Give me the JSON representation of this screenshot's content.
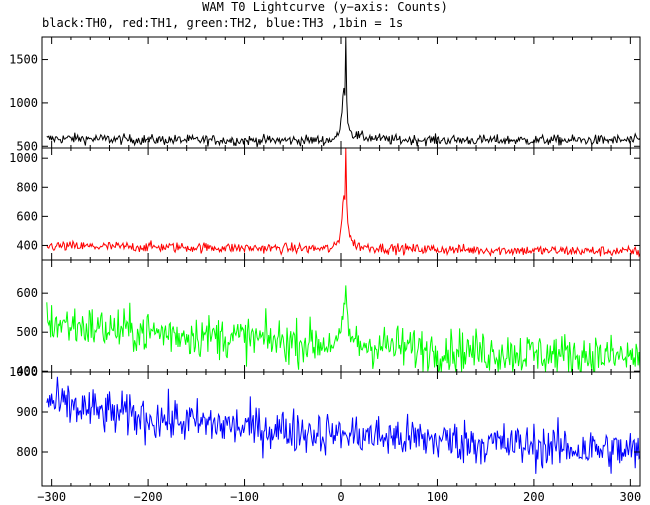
{
  "title": "WAM T0 Lightcurve (y−axis: Counts)",
  "subtitle": "black:TH0, red:TH1, green:TH2, blue:TH3 ,1bin = 1s",
  "chart_data": {
    "type": "line",
    "x_range": [
      -310,
      310
    ],
    "x_ticks": [
      -300,
      -200,
      -100,
      0,
      100,
      200,
      300
    ],
    "x_tick_labels": [
      "−300",
      "−200",
      "−100",
      "0",
      "100",
      "200",
      "300"
    ],
    "panels": [
      {
        "name": "TH0",
        "color": "#000000",
        "ylim": [
          480,
          1760
        ],
        "y_ticks": [
          500,
          1000,
          1500
        ],
        "y_tick_labels": [
          "500",
          "1000",
          "1500"
        ],
        "baseline": [
          [
            -305,
            585
          ],
          [
            -280,
            590
          ],
          [
            -240,
            582
          ],
          [
            -200,
            575
          ],
          [
            -100,
            568
          ],
          [
            -10,
            570
          ],
          [
            -2,
            640
          ],
          [
            0,
            800
          ],
          [
            1,
            900
          ],
          [
            2,
            1050
          ],
          [
            3,
            1200
          ],
          [
            4,
            1100
          ],
          [
            5,
            1760
          ],
          [
            6,
            1000
          ],
          [
            7,
            800
          ],
          [
            9,
            700
          ],
          [
            12,
            640
          ],
          [
            20,
            610
          ],
          [
            50,
            575
          ],
          [
            150,
            570
          ],
          [
            310,
            570
          ]
        ],
        "noise": 30
      },
      {
        "name": "TH1",
        "color": "#ff0000",
        "ylim": [
          300,
          1070
        ],
        "y_ticks": [
          400,
          600,
          800,
          1000
        ],
        "y_tick_labels": [
          "400",
          "600",
          "800",
          "1000"
        ],
        "baseline": [
          [
            -305,
            395
          ],
          [
            -200,
            390
          ],
          [
            -100,
            382
          ],
          [
            -10,
            378
          ],
          [
            -2,
            430
          ],
          [
            0,
            520
          ],
          [
            1,
            600
          ],
          [
            2,
            700
          ],
          [
            3,
            760
          ],
          [
            4,
            720
          ],
          [
            5,
            1070
          ],
          [
            6,
            700
          ],
          [
            7,
            560
          ],
          [
            9,
            470
          ],
          [
            12,
            420
          ],
          [
            20,
            392
          ],
          [
            50,
            378
          ],
          [
            150,
            368
          ],
          [
            310,
            358
          ]
        ],
        "noise": 18
      },
      {
        "name": "TH2",
        "color": "#00ff00",
        "ylim": [
          398,
          685
        ],
        "y_ticks": [
          400,
          500,
          600
        ],
        "y_tick_labels": [
          "400",
          "500",
          "600"
        ],
        "baseline": [
          [
            -305,
            525
          ],
          [
            -250,
            510
          ],
          [
            -200,
            500
          ],
          [
            -100,
            485
          ],
          [
            -50,
            475
          ],
          [
            -5,
            470
          ],
          [
            0,
            500
          ],
          [
            3,
            540
          ],
          [
            5,
            620
          ],
          [
            6,
            560
          ],
          [
            8,
            500
          ],
          [
            15,
            470
          ],
          [
            100,
            455
          ],
          [
            200,
            445
          ],
          [
            310,
            435
          ]
        ],
        "noise": 28
      },
      {
        "name": "TH3",
        "color": "#0000ff",
        "ylim": [
          715,
          1000
        ],
        "y_ticks": [
          800,
          900,
          1000
        ],
        "y_tick_labels": [
          "800",
          "900",
          "1000"
        ],
        "baseline": [
          [
            -305,
            925
          ],
          [
            -250,
            900
          ],
          [
            -200,
            885
          ],
          [
            -100,
            862
          ],
          [
            0,
            845
          ],
          [
            100,
            830
          ],
          [
            200,
            815
          ],
          [
            310,
            800
          ]
        ],
        "noise": 28
      }
    ]
  }
}
